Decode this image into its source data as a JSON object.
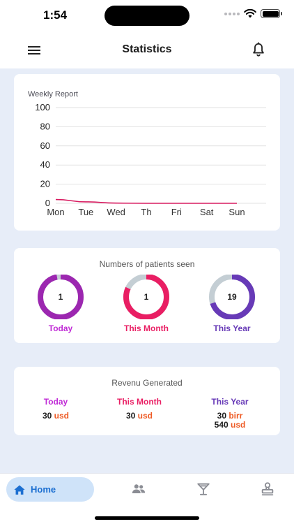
{
  "status_bar": {
    "time": "1:54"
  },
  "app_bar": {
    "title": "Statistics",
    "menu_icon": "hamburger-menu-icon",
    "bell_icon": "bell-icon"
  },
  "weekly_report": {
    "title": "Weekly Report",
    "chart_data": {
      "type": "line",
      "title": "Weekly Report",
      "categories": [
        "Mon",
        "Tue",
        "Wed",
        "Th",
        "Fri",
        "Sat",
        "Sun"
      ],
      "y_ticks": [
        0,
        20,
        40,
        60,
        80,
        100
      ],
      "ylim": [
        0,
        100
      ],
      "grid": true,
      "series": [
        {
          "values": [
            4,
            1.5,
            0.2,
            0,
            0,
            0,
            0
          ],
          "color": "#d81b60"
        }
      ]
    }
  },
  "patients": {
    "title": "Numbers  of patients seen",
    "items": [
      {
        "value": "1",
        "label": "Today",
        "fill_fraction": 0.97,
        "color": "#9c27b0",
        "label_color": "#c02bd6"
      },
      {
        "value": "1",
        "label": "This Month",
        "fill_fraction": 0.82,
        "color": "#e91e63",
        "label_color": "#e91e63"
      },
      {
        "value": "19",
        "label": "This Year",
        "fill_fraction": 0.7,
        "color": "#673ab7",
        "label_color": "#673ab7"
      }
    ],
    "track_color": "#c4ced4"
  },
  "revenue": {
    "title": "Revenu Generated",
    "columns": [
      {
        "label": "Today",
        "label_color": "#c02bd6",
        "amounts": [
          {
            "value": "30",
            "unit": "usd"
          }
        ]
      },
      {
        "label": "This Month",
        "label_color": "#e91e63",
        "amounts": [
          {
            "value": "30",
            "unit": "usd"
          }
        ]
      },
      {
        "label": "This Year",
        "label_color": "#673ab7",
        "amounts": [
          {
            "value": "30",
            "unit": "birr"
          },
          {
            "value": "540",
            "unit": "usd"
          }
        ]
      }
    ]
  },
  "bottom_nav": {
    "items": [
      {
        "label": "Home",
        "icon": "home-icon",
        "active": true
      },
      {
        "label": "",
        "icon": "people-icon",
        "active": false
      },
      {
        "label": "",
        "icon": "cocktail-glass-icon",
        "active": false
      },
      {
        "label": "",
        "icon": "stamp-icon",
        "active": false
      }
    ]
  },
  "colors": {
    "background": "#e7edf8",
    "card": "#ffffff",
    "accent": "#1c6fd1",
    "unit": "#ee5a24"
  }
}
